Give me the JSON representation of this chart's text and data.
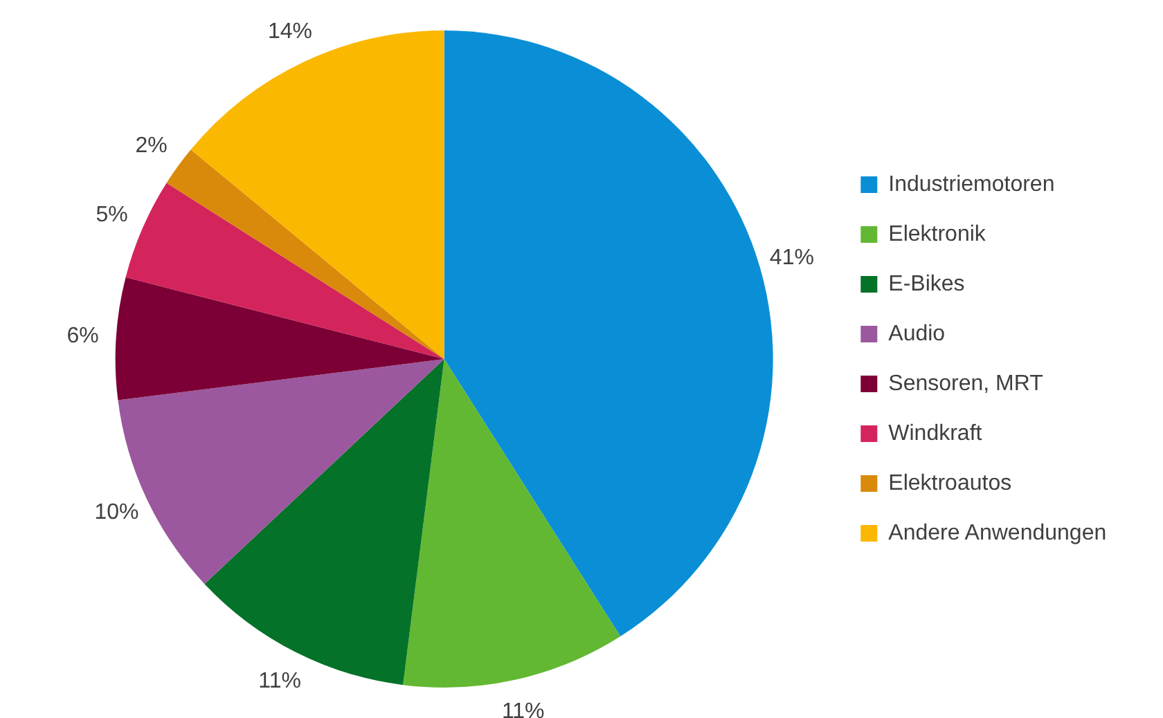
{
  "chart_data": {
    "type": "pie",
    "categories": [
      "Industriemotoren",
      "Elektronik",
      "E-Bikes",
      "Audio",
      "Sensoren, MRT",
      "Windkraft",
      "Elektroautos",
      "Andere Anwendungen"
    ],
    "values": [
      41,
      11,
      11,
      10,
      6,
      5,
      2,
      14
    ],
    "colors": [
      "#0a8fd6",
      "#62b832",
      "#047228",
      "#9b589e",
      "#7c0035",
      "#d4245c",
      "#d98a0b",
      "#fbb800"
    ],
    "value_labels": [
      "41%",
      "11%",
      "11%",
      "10%",
      "6%",
      "5%",
      "2%",
      "14%"
    ],
    "legend": "right"
  }
}
